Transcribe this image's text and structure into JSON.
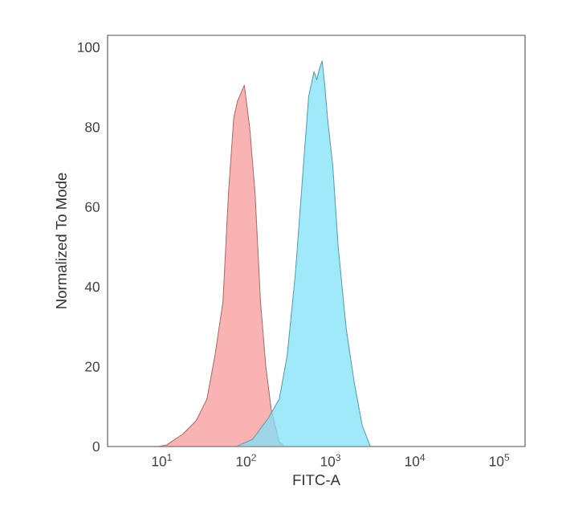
{
  "chart_data": {
    "type": "area",
    "xlabel": "FITC-A",
    "ylabel": "Normalized To Mode",
    "log": "x",
    "xlim": [
      2.25,
      200000
    ],
    "ylim": [
      0,
      103
    ],
    "xticks": [
      {
        "value": 10,
        "label": "10$^{1}$"
      },
      {
        "value": 100,
        "label": "10$^{2}$"
      },
      {
        "value": 1000,
        "label": "10$^{3}$"
      },
      {
        "value": 10000,
        "label": "10$^{4}$"
      },
      {
        "value": 100000,
        "label": "10$^{5}$"
      }
    ],
    "yticks": [
      0,
      20,
      40,
      60,
      80,
      100
    ],
    "grid": false,
    "series": [
      {
        "color": "#f79a9a",
        "x": [
          9,
          11.3,
          17.5,
          25.3,
          33.9,
          42.2,
          52.5,
          61,
          70.5,
          78,
          94,
          109,
          126,
          146,
          169,
          196,
          244,
          282
        ],
        "values": [
          0,
          0.4,
          3.1,
          6.5,
          11.9,
          22.8,
          36.3,
          63.4,
          82.4,
          86.5,
          90.5,
          79.7,
          63.4,
          36.3,
          20,
          9.2,
          1.1,
          0
        ]
      },
      {
        "color": "#7fe1f8",
        "x": [
          76,
          118,
          182,
          244,
          303,
          378,
          471,
          545,
          631,
          679,
          731,
          785,
          845,
          908,
          1052,
          1219,
          1514,
          1888,
          2350,
          2930
        ],
        "values": [
          0,
          1.8,
          7.2,
          11.9,
          22.8,
          43.1,
          70.2,
          87.8,
          93.9,
          91.9,
          94.6,
          96.6,
          90.5,
          82.4,
          70.2,
          49.9,
          29.6,
          16,
          5.2,
          0
        ]
      }
    ]
  }
}
